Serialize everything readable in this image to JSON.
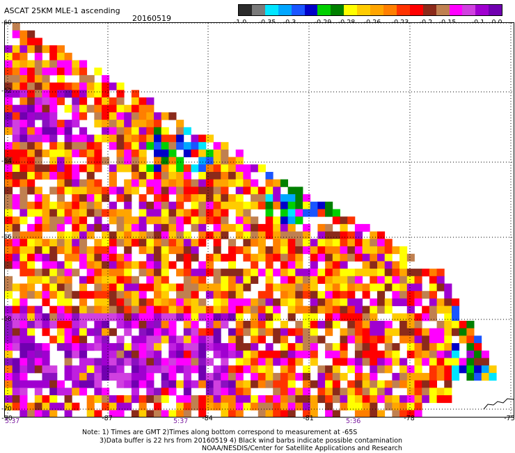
{
  "header": {
    "title": "ASCAT 25KM MLE-1 ascending",
    "date": "20160519"
  },
  "colorbar": {
    "labels": [
      "-1.0",
      "-0.35",
      "-0.3",
      "-0.29",
      "-0.28",
      "-0.26",
      "-0.23",
      "-0.2",
      "-0.15",
      "-0.1",
      "0.0"
    ],
    "colors": [
      "#2b2b2b",
      "#7a7a7a",
      "#00e5ff",
      "#00a6ff",
      "#1a55ff",
      "#0000c8",
      "#00d000",
      "#008000",
      "#ffff00",
      "#ffcc00",
      "#ffa500",
      "#ff7f00",
      "#ff3300",
      "#ff0000",
      "#8b2a1a",
      "#c08050",
      "#ff00ff",
      "#d040e0",
      "#a000d0",
      "#7000b0"
    ]
  },
  "map": {
    "lat_labels": [
      "-60",
      "-62",
      "-64",
      "-66",
      "-68",
      "-70"
    ],
    "lon_labels": [
      "-90",
      "-87",
      "-84",
      "-81",
      "-78",
      "-75"
    ],
    "time_labels": [
      "5:37",
      "5:37",
      "5:36"
    ],
    "palette": {
      "purple": [
        "#7000b0",
        "#8a10c0",
        "#a000d0",
        "#c020e0",
        "#d040e0",
        "#ff00ff"
      ],
      "warm": [
        "#ff0000",
        "#ff3300",
        "#ff7f00",
        "#ffa500",
        "#ffcc00",
        "#ffff00",
        "#8b2a1a",
        "#c08050",
        "#ff00ff",
        "#a000d0"
      ],
      "blue": [
        "#00a6ff",
        "#1a55ff",
        "#00e5ff",
        "#00d000",
        "#008000",
        "#0000c8"
      ]
    }
  },
  "notes": {
    "line1": "Note: 1) Times are GMT 2)Times along bottom correspond to measurement at -65S",
    "line2": "3)Data buffer is 22 hrs from 20160519 4) Black wind barbs indicate possible contamination",
    "line3": "NOAA/NESDIS/Center for Satellite Applications and Research"
  }
}
